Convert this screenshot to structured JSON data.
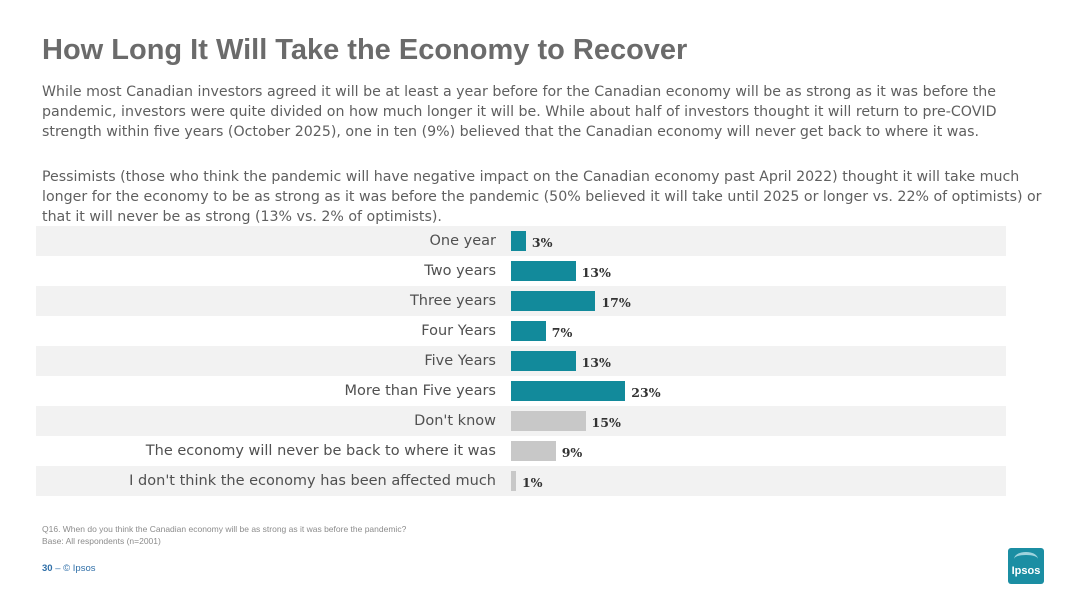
{
  "title": "How Long It Will Take the Economy to Recover",
  "paragraphs": [
    "While most Canadian investors agreed it will be at least a year before for the Canadian economy will be as strong as it was before the pandemic, investors were quite divided on how much longer it will be.  While about half of investors thought it will return to pre-COVID strength within five years (October 2025), one in ten (9%) believed that the Canadian economy will never get back to where it was.",
    "Pessimists (those who think the pandemic will have negative impact on the Canadian economy past April 2022) thought it will take much longer for the economy to be as strong as it was before the pandemic (50% believed it will take until 2025 or longer vs. 22% of optimists) or that it will never be as strong (13% vs. 2% of optimists)."
  ],
  "chart_data": {
    "type": "bar",
    "orientation": "horizontal",
    "categories": [
      "One year",
      "Two years",
      "Three years",
      "Four Years",
      "Five Years",
      "More than Five years",
      "Don't know",
      "The economy will never be back to where it was",
      "I don't think the economy has been affected much"
    ],
    "values": [
      3,
      13,
      17,
      7,
      13,
      23,
      15,
      9,
      1
    ],
    "value_labels": [
      "3%",
      "13%",
      "17%",
      "7%",
      "13%",
      "23%",
      "15%",
      "9%",
      "1%"
    ],
    "bar_colors": [
      "#128a9b",
      "#128a9b",
      "#128a9b",
      "#128a9b",
      "#128a9b",
      "#128a9b",
      "#c8c8c8",
      "#c8c8c8",
      "#c8c8c8"
    ],
    "xlim": [
      0,
      100
    ],
    "grid": false,
    "legend": "none"
  },
  "footnotes": [
    "Q16. When do you think the Canadian economy will be as strong as it was before the pandemic?",
    "Base: All respondents (n=2001)"
  ],
  "footer": {
    "page_number": "30",
    "separator": "–",
    "copyright": "© Ipsos"
  },
  "logo": {
    "text": "Ipsos",
    "color": "#1b8ea3"
  }
}
